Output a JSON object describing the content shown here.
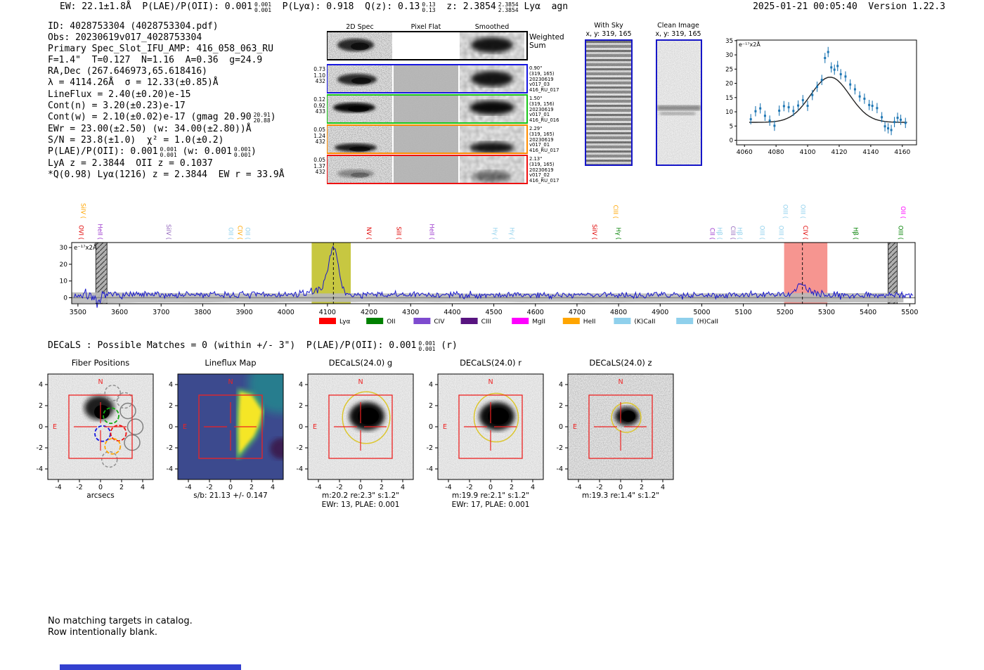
{
  "header": {
    "tokens": [
      {
        "t": "EW: 22.1±1.8Å  P(LAE)/P(OII): 0.001"
      },
      {
        "s": [
          "0.001",
          "0.001"
        ]
      },
      {
        "t": "  P(Lyα): 0.918  Q(z): 0.13"
      },
      {
        "s": [
          "0.13",
          "0.13"
        ]
      },
      {
        "t": "  z: 2.3854"
      },
      {
        "s": [
          "2.3854",
          "2.3854"
        ]
      },
      {
        "t": " Lyα  agn"
      }
    ],
    "right": "2025-01-21 00:05:40  Version 1.22.3"
  },
  "info_lines": [
    [
      {
        "t": "ID: 4028753304 (4028753304.pdf)"
      }
    ],
    [
      {
        "t": "Obs: 20230619v017_4028753304"
      }
    ],
    [
      {
        "t": "Primary Spec_Slot_IFU_AMP: 416_058_063_RU"
      }
    ],
    [
      {
        "t": "F=1.4\"  T=0.127  N=1.16  A=0.36  g=24.9"
      }
    ],
    [
      {
        "t": "RA,Dec (267.646973,65.618416)"
      }
    ],
    [
      {
        "t": "λ = 4114.26Å  σ = 12.33(±0.85)Å"
      }
    ],
    [
      {
        "t": "LineFlux = 2.40(±0.20)e-15"
      }
    ],
    [
      {
        "t": "Cont(n) = 3.20(±0.23)e-17"
      }
    ],
    [
      {
        "t": "Cont(w) = 2.10(±0.02)e-17 (gmag 20.90"
      },
      {
        "s": [
          "20.91",
          "20.88"
        ]
      },
      {
        "t": ")"
      }
    ],
    [
      {
        "t": "EWr = 23.00(±2.50) (w: 34.00(±2.80))Å"
      }
    ],
    [
      {
        "t": "S/N = 23.8(±1.0)  χ² = 1.0(±0.2)"
      }
    ],
    [
      {
        "t": "P(LAE)/P(OII): 0.001"
      },
      {
        "s": [
          "0.001",
          "0.001"
        ]
      },
      {
        "t": " (w: 0.001"
      },
      {
        "s": [
          "0.001",
          "0.001"
        ]
      },
      {
        "t": ")"
      }
    ],
    [
      {
        "t": "LyA z = 2.3844  OII z = 0.1037"
      }
    ],
    [
      {
        "t": "*Q(0.98) Lyα(1216) z = 2.3844  EW r = 33.9Å"
      }
    ]
  ],
  "spec2d": {
    "col_titles": [
      "2D Spec",
      "Pixel Flat",
      "Smoothed"
    ],
    "rows": [
      {
        "border": "#000000",
        "left": [],
        "right": [
          "Weighted",
          "Sum"
        ],
        "big": true
      },
      {
        "border": "#1616e0",
        "left": [
          "0.73",
          "1.10",
          "432"
        ],
        "right": [
          "0.90\"",
          "(319, 165)",
          "20230619",
          "v017_03",
          "416_RU_017"
        ]
      },
      {
        "border": "#18c418",
        "left": [
          "0.12",
          "0.92",
          "433"
        ],
        "right": [
          "1.50\"",
          "(319, 156)",
          "20230619",
          "v017_01",
          "416_RU_016"
        ]
      },
      {
        "border": "#ff8c00",
        "left": [
          "0.05",
          "1.24",
          "432"
        ],
        "right": [
          "2.29\"",
          "(319, 165)",
          "20230619",
          "v017_01",
          "416_RU_017"
        ]
      },
      {
        "border": "#ee1111",
        "left": [
          "0.05",
          "1.37",
          "432"
        ],
        "right": [
          "2.13\"",
          "(319, 165)",
          "20230619",
          "v017_02",
          "416_RU_017"
        ]
      }
    ]
  },
  "sky_panels": [
    {
      "title": "With Sky",
      "subtitle": "x, y: 319, 165"
    },
    {
      "title": "Clean Image",
      "subtitle": "x, y: 319, 165"
    }
  ],
  "decals_line": [
    {
      "t": "DECaLS : Possible Matches = 0 (within +/- 3\")  P(LAE)/P(OII): 0.001"
    },
    {
      "s": [
        "0.001",
        "0.001"
      ]
    },
    {
      "t": " (r)"
    }
  ],
  "footer_lines": [
    "No matching targets in catalog.",
    "Row intentionally blank."
  ],
  "chart_data": {
    "line_zoom": {
      "type": "scatter",
      "inplot_label": "e⁻¹⁷x2Å",
      "xlim": [
        4055,
        4169
      ],
      "ylim": [
        -1.6,
        35.2
      ],
      "xticks": [
        4060,
        4080,
        4100,
        4120,
        4140,
        4160
      ],
      "yticks": [
        0,
        5,
        10,
        15,
        20,
        25,
        30,
        35
      ],
      "err": 1.8,
      "marker_color": "#1f77b4",
      "points": [
        [
          4064,
          7.4
        ],
        [
          4067,
          10.2
        ],
        [
          4070,
          11.2
        ],
        [
          4073,
          8.6
        ],
        [
          4076,
          6.9
        ],
        [
          4079,
          5.1
        ],
        [
          4082,
          10.4
        ],
        [
          4085,
          12.0
        ],
        [
          4088,
          11.6
        ],
        [
          4091,
          10.3
        ],
        [
          4094,
          12.2
        ],
        [
          4097,
          14.1
        ],
        [
          4100,
          12.1
        ],
        [
          4103,
          15.9
        ],
        [
          4106,
          18.8
        ],
        [
          4109,
          21.2
        ],
        [
          4111,
          28.9
        ],
        [
          4113,
          31.0
        ],
        [
          4115,
          25.6
        ],
        [
          4117,
          24.8
        ],
        [
          4119,
          26.1
        ],
        [
          4121,
          23.2
        ],
        [
          4124,
          22.4
        ],
        [
          4127,
          19.6
        ],
        [
          4130,
          17.9
        ],
        [
          4133,
          15.4
        ],
        [
          4136,
          14.6
        ],
        [
          4139,
          12.4
        ],
        [
          4141,
          12.1
        ],
        [
          4144,
          11.3
        ],
        [
          4147,
          8.1
        ],
        [
          4149,
          4.9
        ],
        [
          4151,
          4.2
        ],
        [
          4153,
          3.6
        ],
        [
          4155,
          6.4
        ],
        [
          4157,
          7.9
        ],
        [
          4159,
          7.2
        ],
        [
          4162,
          6.1
        ]
      ],
      "fit": {
        "type": "gaussian",
        "mu": 4114.26,
        "sigma": 12.33,
        "amp": 15.9,
        "baseline": 6.3
      }
    },
    "full_spectrum": {
      "type": "line",
      "inplot_label": "e⁻¹⁷x2Å",
      "line_color": "#1818cc",
      "xlim": [
        3485,
        5513
      ],
      "ylim": [
        -3.6,
        33
      ],
      "xticks": [
        3500,
        3600,
        3700,
        3800,
        3900,
        4000,
        4100,
        4200,
        4300,
        4400,
        4500,
        4600,
        4700,
        4800,
        4900,
        5000,
        5100,
        5200,
        5300,
        5400,
        5500
      ],
      "yticks": [
        0,
        10,
        20,
        30
      ],
      "bands": [
        {
          "x0": 4062,
          "x1": 4156,
          "color": "#bdbd20",
          "line": 4114.3
        },
        {
          "x0": 5198,
          "x1": 5302,
          "color": "#f4837d",
          "line": 5242
        }
      ],
      "hatched": [
        [
          3543,
          3570
        ],
        [
          5448,
          5470
        ]
      ],
      "profile": {
        "baseline": 1.7,
        "noise": 2.0,
        "peaks": [
          {
            "mu": 4114,
            "sigma": 11.5,
            "amp": 27.3
          },
          {
            "mu": 5240,
            "sigma": 14,
            "amp": 6.0
          },
          {
            "mu": 4085,
            "sigma": 26,
            "amp": 3.0
          }
        ],
        "dip": {
          "mu": 3548,
          "sigma": 5,
          "amp": 8
        },
        "err_band": 2.4
      },
      "line_labels": [
        {
          "x": 3503,
          "t": "OVI",
          "c": "#e00000",
          "hi": 0
        },
        {
          "x": 3508,
          "t": "SiIV",
          "c": "#ffa500",
          "hi": 1
        },
        {
          "x": 3548,
          "t": "HeII",
          "c": "#9932cc",
          "hi": 0
        },
        {
          "x": 3713,
          "t": "SiIV",
          "c": "#9467bd",
          "hi": 0
        },
        {
          "x": 3863,
          "t": "OII",
          "c": "#8fd0ec",
          "hi": 0
        },
        {
          "x": 3885,
          "t": "CIV",
          "c": "#ffa500",
          "hi": 0
        },
        {
          "x": 3903,
          "t": "OII",
          "c": "#8fd0ec",
          "hi": 0
        },
        {
          "x": 4195,
          "t": "NV",
          "c": "#e00000",
          "hi": 0
        },
        {
          "x": 4267,
          "t": "SiII",
          "c": "#e00000",
          "hi": 0
        },
        {
          "x": 4346,
          "t": "HeII",
          "c": "#9932cc",
          "hi": 0
        },
        {
          "x": 4498,
          "t": "Hγ",
          "c": "#8fd0ec",
          "hi": 0
        },
        {
          "x": 4539,
          "t": "Hγ",
          "c": "#8fd0ec",
          "hi": 0
        },
        {
          "x": 4737,
          "t": "SiIV",
          "c": "#e00000",
          "hi": 0
        },
        {
          "x": 4788,
          "t": "CIII",
          "c": "#ffa500",
          "hi": 1
        },
        {
          "x": 4795,
          "t": "Hγ",
          "c": "#008000",
          "hi": 0
        },
        {
          "x": 5020,
          "t": "CII",
          "c": "#9932cc",
          "hi": 0
        },
        {
          "x": 5038,
          "t": "Hβ",
          "c": "#8fd0ec",
          "hi": 0
        },
        {
          "x": 5070,
          "t": "CIII",
          "c": "#9467bd",
          "hi": 0
        },
        {
          "x": 5086,
          "t": "Hβ",
          "c": "#8fd0ec",
          "hi": 0
        },
        {
          "x": 5140,
          "t": "OIII",
          "c": "#8fd0ec",
          "hi": 0
        },
        {
          "x": 5186,
          "t": "OIII",
          "c": "#8fd0ec",
          "hi": 0
        },
        {
          "x": 5196,
          "t": "OIII",
          "c": "#8fd0ec",
          "hi": 1
        },
        {
          "x": 5238,
          "t": "OIII",
          "c": "#8fd0ec",
          "hi": 1
        },
        {
          "x": 5244,
          "t": "CIV",
          "c": "#e00000",
          "hi": 0
        },
        {
          "x": 5365,
          "t": "Hβ",
          "c": "#008000",
          "hi": 0
        },
        {
          "x": 5473,
          "t": "OIII",
          "c": "#008000",
          "hi": 0
        },
        {
          "x": 5479,
          "t": "OII",
          "c": "#ff00ff",
          "hi": 1
        }
      ],
      "legend": [
        {
          "label": "Lyα",
          "color": "#ff0000"
        },
        {
          "label": "OII",
          "color": "#008000"
        },
        {
          "label": "CIV",
          "color": "#7e4bcf"
        },
        {
          "label": "CIII",
          "color": "#581480"
        },
        {
          "label": "MgII",
          "color": "#ff00ff"
        },
        {
          "label": "HeII",
          "color": "#ffa500"
        },
        {
          "label": "(K)CaII",
          "color": "#8fd0ec"
        },
        {
          "label": "(H)CaII",
          "color": "#8fd0ec"
        }
      ]
    },
    "cutouts": {
      "ticks": [
        -4,
        -2,
        0,
        2,
        4
      ],
      "compass": {
        "n": "N",
        "e": "E"
      },
      "panels": [
        {
          "kind": "fiber",
          "title": "Fiber Positions",
          "xlabel": "arcsecs",
          "xlabel2": ""
        },
        {
          "kind": "flux",
          "title": "Lineflux Map",
          "xlabel": "s/b: 21.13 +/- 0.147",
          "xlabel2": ""
        },
        {
          "kind": "decals",
          "title": "DECaLS(24.0) g",
          "xlabel": "m:20.2  re:2.3\"  s:1.2\"",
          "xlabel2": "EWr: 13, PLAE: 0.001",
          "aper": {
            "rx": 2.25,
            "ry": 2.45
          }
        },
        {
          "kind": "decals",
          "title": "DECaLS(24.0) r",
          "xlabel": "m:19.9  re:2.1\"  s:1.2\"",
          "xlabel2": "EWr: 17, PLAE: 0.001",
          "aper": {
            "rx": 2.1,
            "ry": 2.3
          }
        },
        {
          "kind": "decals_z",
          "title": "DECaLS(24.0) z",
          "xlabel": "m:19.3  re:1.4\"  s:1.2\"",
          "xlabel2": "",
          "aper": {
            "rx": 1.4,
            "ry": 1.4
          }
        }
      ]
    }
  }
}
